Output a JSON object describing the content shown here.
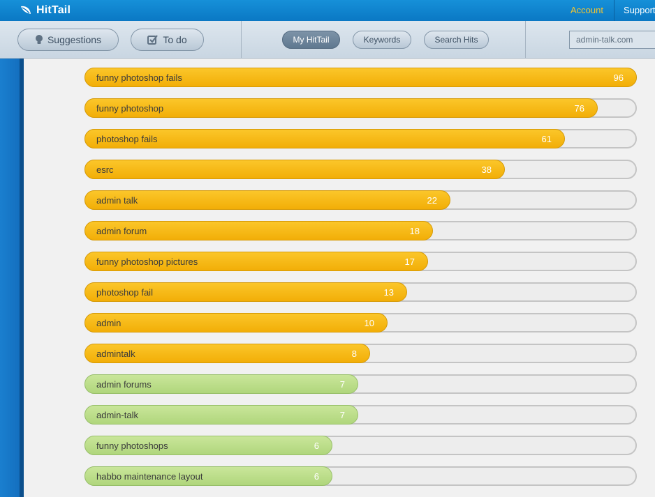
{
  "header": {
    "app_name": "HitTail",
    "logo_icon": "leaf-icon",
    "account_label": "Account",
    "support_label": "Support",
    "account_color": "#f4c430",
    "brand_color": "#0a78c4"
  },
  "nav": {
    "suggestions_label": "Suggestions",
    "suggestions_icon": "lightbulb-icon",
    "todo_label": "To do",
    "todo_icon": "checkbox-icon",
    "tabs": [
      {
        "label": "My HitTail",
        "active": true
      },
      {
        "label": "Keywords",
        "active": false
      },
      {
        "label": "Search Hits",
        "active": false
      }
    ],
    "domain_value": "admin-talk.com"
  },
  "keywords": {
    "max_value": 96,
    "colors": {
      "orange": "#f2ae07",
      "green": "#b0d67c"
    },
    "items": [
      {
        "label": "funny photoshop fails",
        "value": 96,
        "color": "orange"
      },
      {
        "label": "funny photoshop",
        "value": 76,
        "color": "orange"
      },
      {
        "label": "photoshop fails",
        "value": 61,
        "color": "orange"
      },
      {
        "label": "esrc",
        "value": 38,
        "color": "orange"
      },
      {
        "label": "admin talk",
        "value": 22,
        "color": "orange"
      },
      {
        "label": "admin forum",
        "value": 18,
        "color": "orange"
      },
      {
        "label": "funny photoshop pictures",
        "value": 17,
        "color": "orange"
      },
      {
        "label": "photoshop fail",
        "value": 13,
        "color": "orange"
      },
      {
        "label": "admin",
        "value": 10,
        "color": "orange"
      },
      {
        "label": "admintalk",
        "value": 8,
        "color": "orange"
      },
      {
        "label": "admin forums",
        "value": 7,
        "color": "green"
      },
      {
        "label": "admin-talk",
        "value": 7,
        "color": "green"
      },
      {
        "label": "funny photoshops",
        "value": 6,
        "color": "green"
      },
      {
        "label": "habbo maintenance layout",
        "value": 6,
        "color": "green"
      }
    ]
  }
}
